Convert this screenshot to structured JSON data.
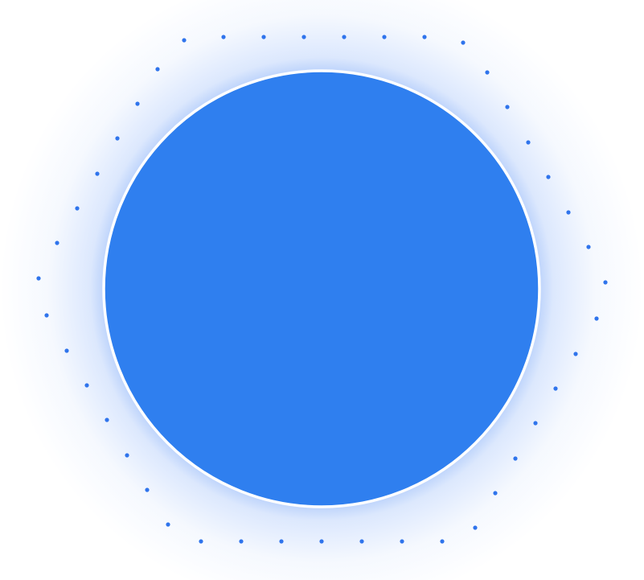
{
  "colors": {
    "circle_fill": "#2f7fef",
    "circle_border": "#ffffff",
    "glow": "#3d7ff5",
    "dots": "#2f74ec",
    "background": "#ffffff"
  }
}
